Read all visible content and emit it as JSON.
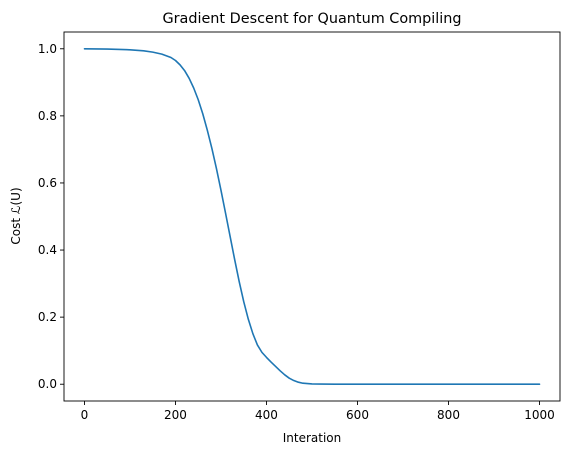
{
  "chart_data": {
    "type": "line",
    "title": "Gradient Descent for Quantum Compiling",
    "xlabel": "Interation",
    "ylabel": "Cost ℒ(U)",
    "xlim": [
      -45,
      1045
    ],
    "ylim": [
      -0.05,
      1.05
    ],
    "xticks": [
      0,
      200,
      400,
      600,
      800,
      1000
    ],
    "xtick_labels": [
      "0",
      "200",
      "400",
      "600",
      "800",
      "1000"
    ],
    "yticks": [
      0.0,
      0.2,
      0.4,
      0.6,
      0.8,
      1.0
    ],
    "ytick_labels": [
      "0.0",
      "0.2",
      "0.4",
      "0.6",
      "0.8",
      "1.0"
    ],
    "grid": false,
    "line_color": "#1f77b4",
    "series": [
      {
        "x": [
          0,
          50,
          100,
          130,
          150,
          170,
          190,
          200,
          210,
          220,
          230,
          240,
          250,
          260,
          270,
          280,
          290,
          300,
          310,
          320,
          330,
          340,
          350,
          360,
          370,
          380,
          390,
          400,
          410,
          420,
          430,
          440,
          450,
          460,
          470,
          480,
          490,
          500,
          520,
          550,
          600,
          700,
          800,
          900,
          1000
        ],
        "y": [
          1.0,
          0.999,
          0.997,
          0.994,
          0.99,
          0.984,
          0.974,
          0.965,
          0.952,
          0.935,
          0.912,
          0.883,
          0.848,
          0.806,
          0.757,
          0.703,
          0.643,
          0.578,
          0.51,
          0.441,
          0.372,
          0.306,
          0.246,
          0.194,
          0.151,
          0.117,
          0.095,
          0.08,
          0.066,
          0.053,
          0.04,
          0.028,
          0.018,
          0.011,
          0.006,
          0.003,
          0.002,
          0.001,
          0.0005,
          0.0002,
          0.0001,
          0.0,
          0.0,
          0.0,
          0.0
        ]
      }
    ]
  }
}
